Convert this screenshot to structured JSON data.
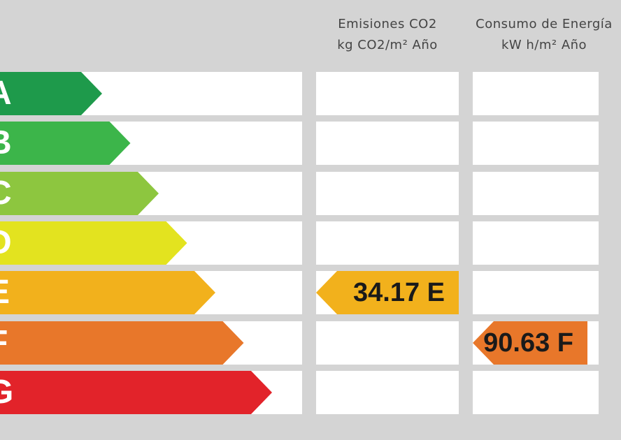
{
  "headers": {
    "emissions": {
      "line1": "Emisiones CO2",
      "line2": "kg CO2/m² Año"
    },
    "consumption": {
      "line1": "Consumo de Energía",
      "line2": "kW h/m² Año"
    }
  },
  "classes": [
    {
      "letter": "A",
      "color": "#1e9a4b"
    },
    {
      "letter": "B",
      "color": "#3cb54a"
    },
    {
      "letter": "C",
      "color": "#8dc63f"
    },
    {
      "letter": "D",
      "color": "#e3e31f"
    },
    {
      "letter": "E",
      "color": "#f2b11c"
    },
    {
      "letter": "F",
      "color": "#e8772a"
    },
    {
      "letter": "G",
      "color": "#e2232a"
    }
  ],
  "emissions_rating": {
    "value": "34.17 E",
    "class": "E",
    "color": "#f2b11c"
  },
  "consumption_rating": {
    "value": "90.63 F",
    "class": "F",
    "color": "#e8772a"
  }
}
